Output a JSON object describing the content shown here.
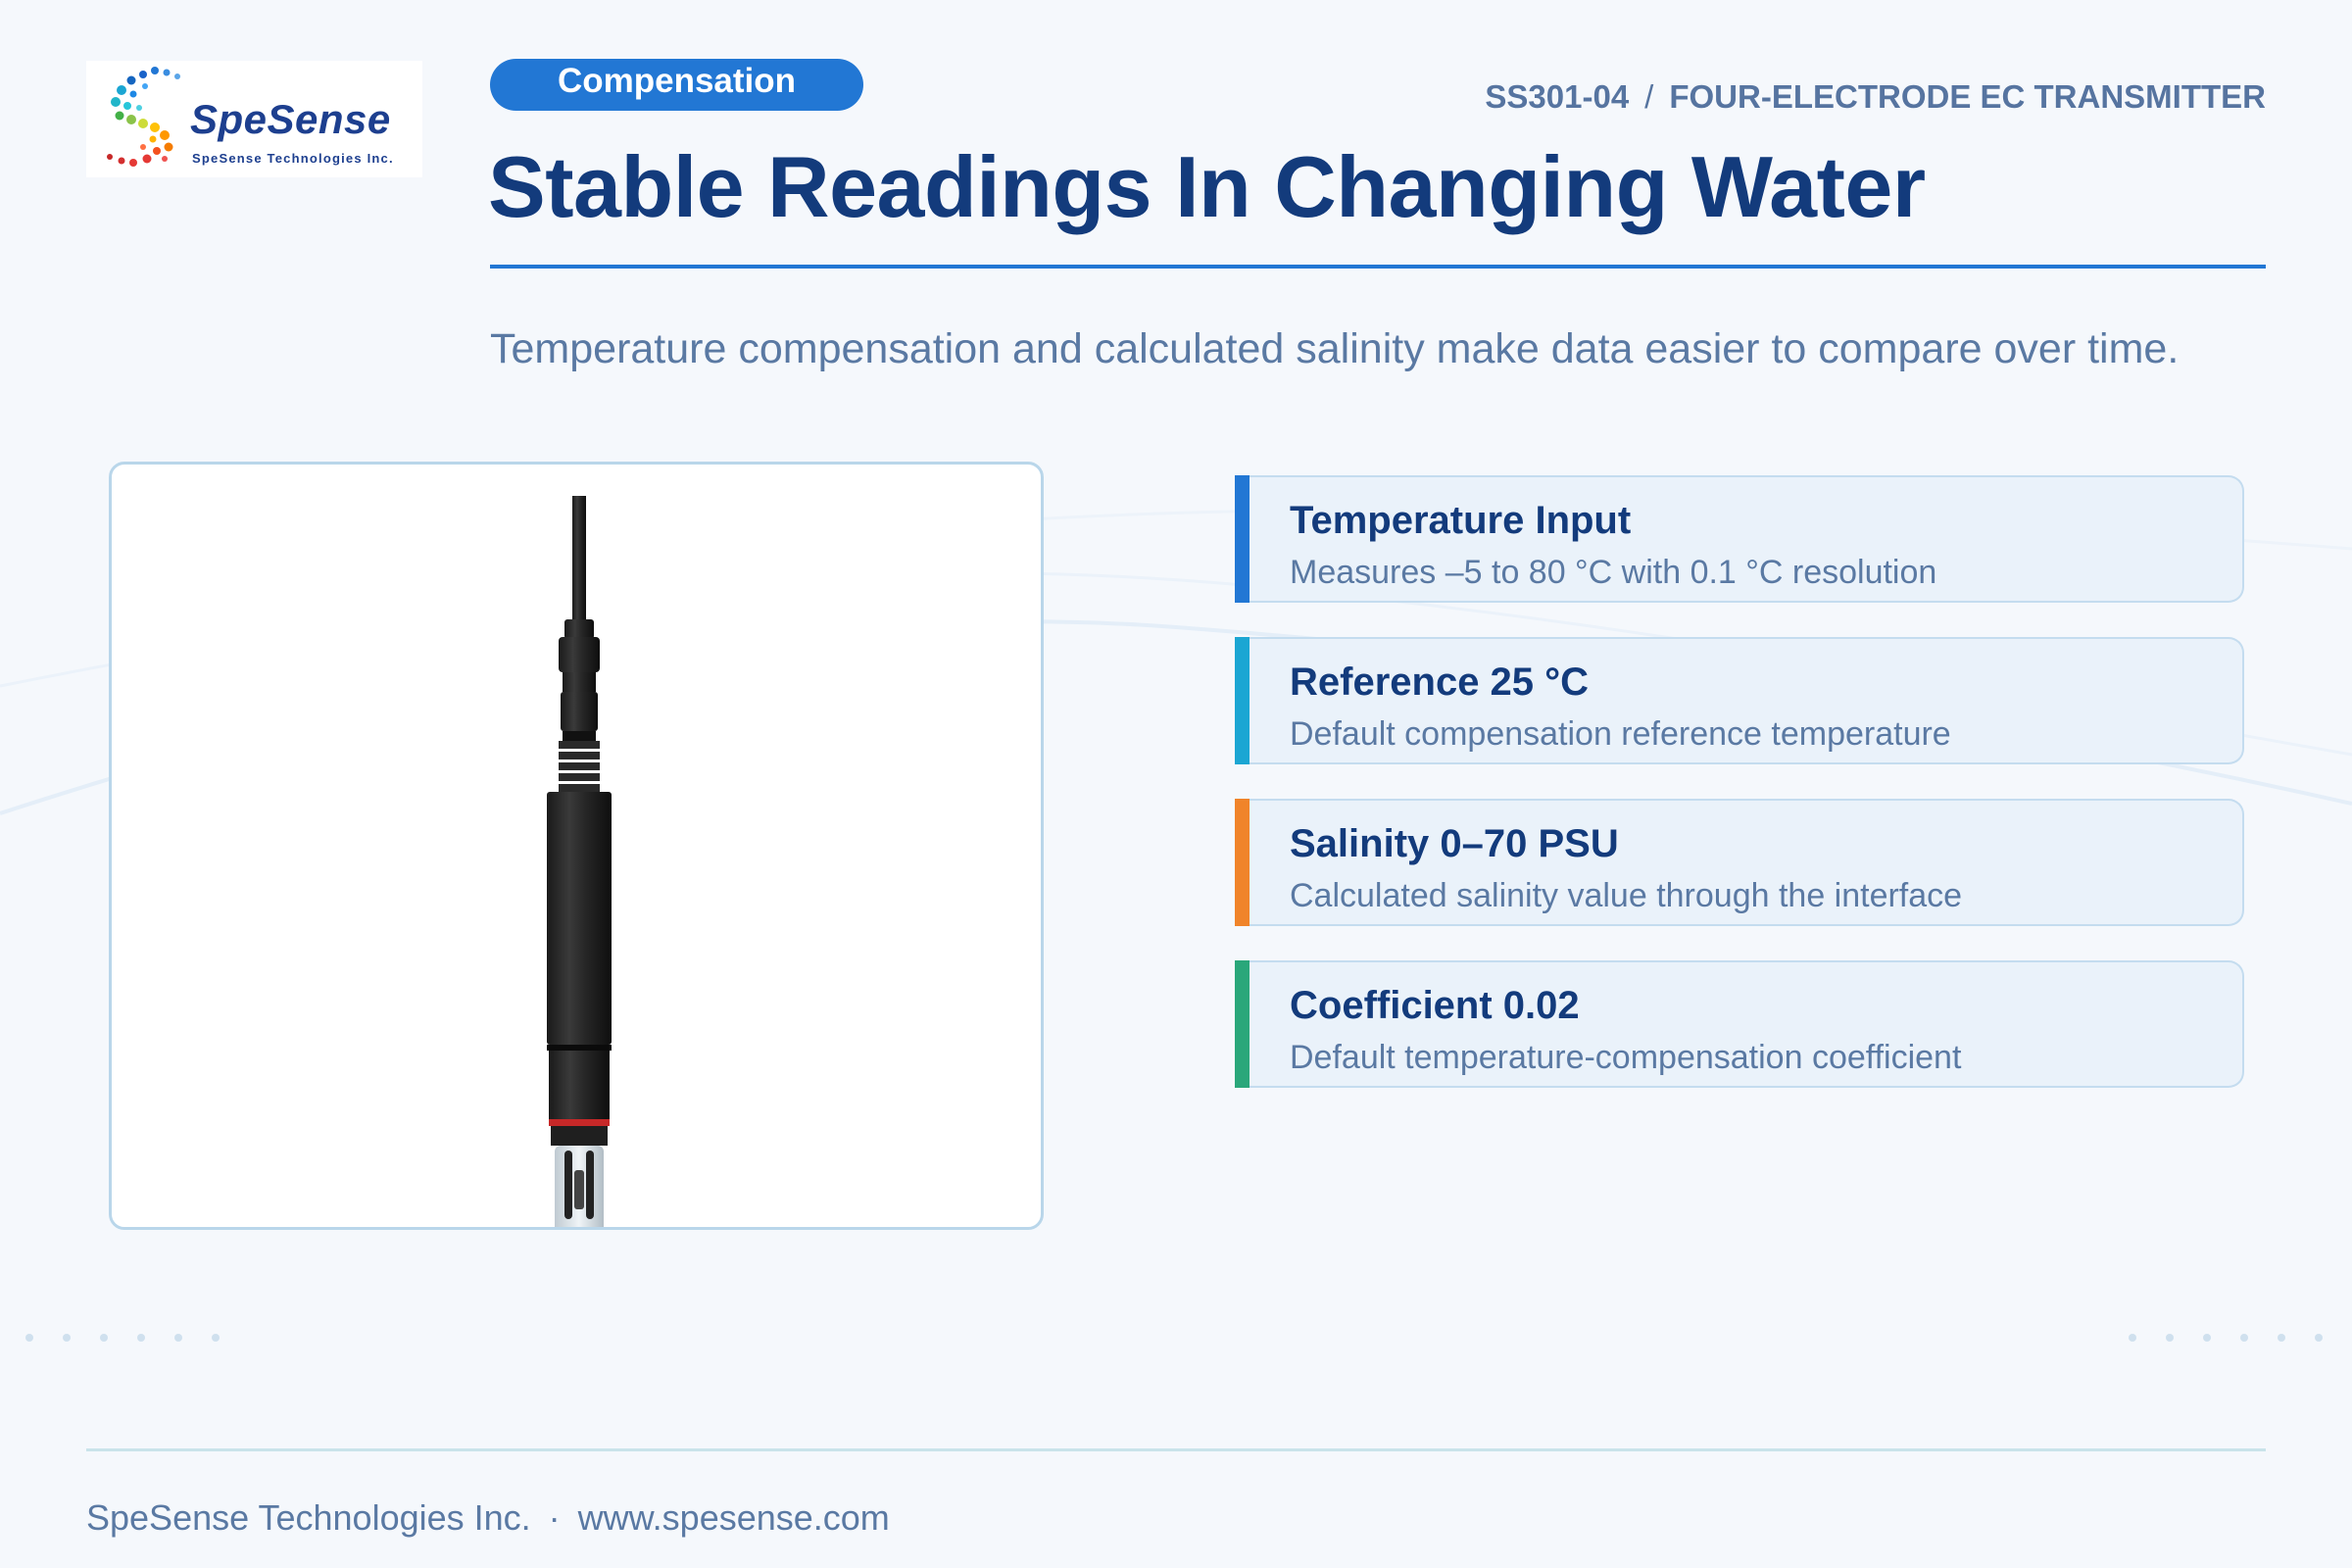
{
  "brand": {
    "name": "SpeSense",
    "tagline": "SpeSense Technologies Inc."
  },
  "header": {
    "tag": "Compensation",
    "model": "SS301-04",
    "separator": "/",
    "product": "FOUR-ELECTRODE EC TRANSMITTER",
    "title": "Stable Readings In Changing Water",
    "subtitle": "Temperature compensation and calculated salinity make data easier to compare over time."
  },
  "features": [
    {
      "title": "Temperature Input",
      "desc": "Measures –5 to 80 °C with 0.1 °C resolution",
      "color": "#2277d4"
    },
    {
      "title": "Reference 25 °C",
      "desc": "Default compensation reference temperature",
      "color": "#1ba6d3"
    },
    {
      "title": "Salinity 0–70 PSU",
      "desc": "Calculated salinity value through the interface",
      "color": "#f0842a"
    },
    {
      "title": "Coefficient 0.02",
      "desc": "Default temperature-compensation coefficient",
      "color": "#2aa77a"
    }
  ],
  "footer": {
    "company": "SpeSense Technologies Inc.",
    "separator": "·",
    "website": "www.spesense.com"
  },
  "icons": {
    "logo": "spesense-dotted-s-logo",
    "product": "ec-probe-electrode"
  }
}
